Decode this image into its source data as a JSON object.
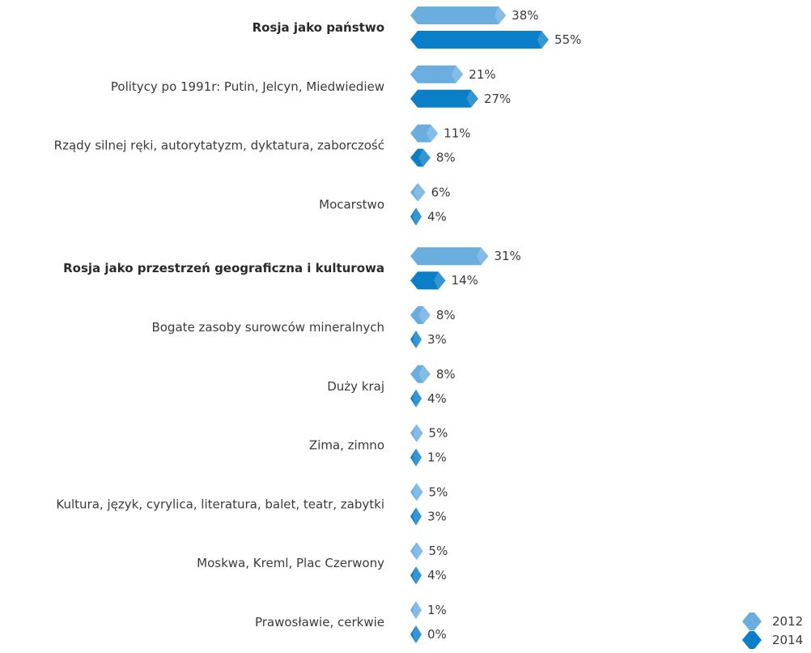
{
  "chart_data": {
    "type": "bar",
    "orientation": "horizontal",
    "categories": [
      "Rosja jako państwo",
      "Politycy po 1991r: Putin, Jelcyn, Miedwiediew",
      "Rządy silnej ręki, autorytatyzm, dyktatura, zaborczość",
      "Mocarstwo",
      "Rosja jako przestrzeń geograficzna i kulturowa",
      "Bogate zasoby surowców mineralnych",
      "Duży kraj",
      "Zima, zimno",
      "Kultura, język, cyrylica, literatura, balet, teatr, zabytki",
      "Moskwa, Kreml, Plac Czerwony",
      "Prawosławie, cerkwie"
    ],
    "bold_categories": [
      0,
      4
    ],
    "series": [
      {
        "name": "2012",
        "color": "#6aaee0",
        "values": [
          38,
          21,
          11,
          6,
          31,
          8,
          8,
          5,
          5,
          5,
          1
        ],
        "labels": [
          "38%",
          "21%",
          "11%",
          "6%",
          "31%",
          "8%",
          "8%",
          "5%",
          "5%",
          "5%",
          "1%"
        ]
      },
      {
        "name": "2014",
        "color": "#0a7fc8",
        "values": [
          55,
          27,
          8,
          4,
          14,
          3,
          4,
          1,
          3,
          4,
          0
        ],
        "labels": [
          "55%",
          "27%",
          "8%",
          "4%",
          "14%",
          "3%",
          "4%",
          "1%",
          "3%",
          "4%",
          "0%"
        ]
      }
    ],
    "xlim": [
      0,
      100
    ],
    "bar_shape": "hexagon",
    "legend_placement": "bottom-right",
    "grid": false
  }
}
